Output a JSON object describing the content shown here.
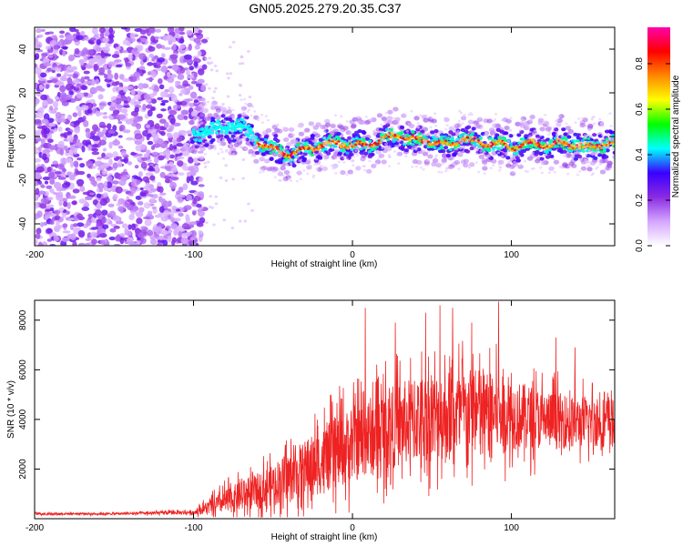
{
  "title": "GN05.2025.279.20.35.C37",
  "chart_data": [
    {
      "type": "heatmap",
      "name": "spectrogram",
      "xlabel": "Height of straight line (km)",
      "ylabel": "Frequency (Hz)",
      "xlim": [
        -200,
        165
      ],
      "ylim": [
        -50,
        50
      ],
      "x_ticks": [
        -200,
        -100,
        0,
        100
      ],
      "y_ticks": [
        -40,
        -20,
        0,
        20,
        40
      ],
      "noise_region_x": [
        -200,
        -93
      ],
      "signal_start_x": -100,
      "signal_track": [
        {
          "x": -100,
          "f": 1
        },
        {
          "x": -90,
          "f": 3
        },
        {
          "x": -80,
          "f": 4
        },
        {
          "x": -70,
          "f": 5
        },
        {
          "x": -60,
          "f": -2
        },
        {
          "x": -50,
          "f": -6
        },
        {
          "x": -40,
          "f": -8
        },
        {
          "x": -30,
          "f": -6
        },
        {
          "x": -20,
          "f": -4
        },
        {
          "x": -10,
          "f": -3
        },
        {
          "x": 0,
          "f": -4
        },
        {
          "x": 10,
          "f": -4
        },
        {
          "x": 20,
          "f": -1
        },
        {
          "x": 30,
          "f": 1
        },
        {
          "x": 40,
          "f": -2
        },
        {
          "x": 50,
          "f": -2
        },
        {
          "x": 60,
          "f": -4
        },
        {
          "x": 70,
          "f": -1
        },
        {
          "x": 80,
          "f": -3
        },
        {
          "x": 90,
          "f": -3
        },
        {
          "x": 100,
          "f": -5
        },
        {
          "x": 110,
          "f": -3
        },
        {
          "x": 120,
          "f": -4
        },
        {
          "x": 130,
          "f": -3
        },
        {
          "x": 140,
          "f": -4
        },
        {
          "x": 150,
          "f": -5
        },
        {
          "x": 160,
          "f": -3
        }
      ],
      "colorbar": {
        "label": "Normalized spectral amplitude",
        "range": [
          0,
          0.96
        ],
        "ticks": [
          0.0,
          0.2,
          0.4,
          0.6,
          0.8
        ],
        "tick_labels": [
          "0.0",
          "0.2",
          "0.4",
          "0.6",
          "0.8"
        ],
        "colors": [
          "#ffffff",
          "#d4a6ff",
          "#8a2be2",
          "#3a00ff",
          "#00ffff",
          "#00ff00",
          "#ffff00",
          "#ff8800",
          "#ff0000",
          "#ff00aa"
        ]
      }
    },
    {
      "type": "line",
      "name": "snr",
      "xlabel": "Height of straight line (km)",
      "ylabel": "SNR (10 * v/v)",
      "xlim": [
        -200,
        165
      ],
      "ylim": [
        0,
        8800
      ],
      "x_ticks": [
        -200,
        -100,
        0,
        100
      ],
      "y_ticks": [
        2000,
        4000,
        6000,
        8000
      ],
      "color": "#ee2222",
      "envelope": [
        {
          "x": -200,
          "mean": 200,
          "amp": 80
        },
        {
          "x": -150,
          "mean": 200,
          "amp": 80
        },
        {
          "x": -100,
          "mean": 260,
          "amp": 150
        },
        {
          "x": -80,
          "mean": 700,
          "amp": 900
        },
        {
          "x": -60,
          "mean": 1100,
          "amp": 1300
        },
        {
          "x": -40,
          "mean": 1700,
          "amp": 1800
        },
        {
          "x": -20,
          "mean": 2300,
          "amp": 2400
        },
        {
          "x": 0,
          "mean": 3000,
          "amp": 2800
        },
        {
          "x": 20,
          "mean": 3600,
          "amp": 3000
        },
        {
          "x": 40,
          "mean": 4000,
          "amp": 3200
        },
        {
          "x": 60,
          "mean": 4200,
          "amp": 3300
        },
        {
          "x": 80,
          "mean": 4300,
          "amp": 3200
        },
        {
          "x": 100,
          "mean": 4200,
          "amp": 2600
        },
        {
          "x": 120,
          "mean": 4000,
          "amp": 2200
        },
        {
          "x": 140,
          "mean": 3900,
          "amp": 1900
        },
        {
          "x": 165,
          "mean": 3900,
          "amp": 1800
        }
      ],
      "peaks": [
        {
          "x": 8,
          "y": 8500
        },
        {
          "x": 46,
          "y": 8300
        },
        {
          "x": 55,
          "y": 8600
        },
        {
          "x": 63,
          "y": 8500
        },
        {
          "x": 92,
          "y": 8750
        },
        {
          "x": 27,
          "y": 7900
        },
        {
          "x": 75,
          "y": 7900
        },
        {
          "x": 128,
          "y": 7300
        },
        {
          "x": 140,
          "y": 6900
        }
      ]
    }
  ]
}
